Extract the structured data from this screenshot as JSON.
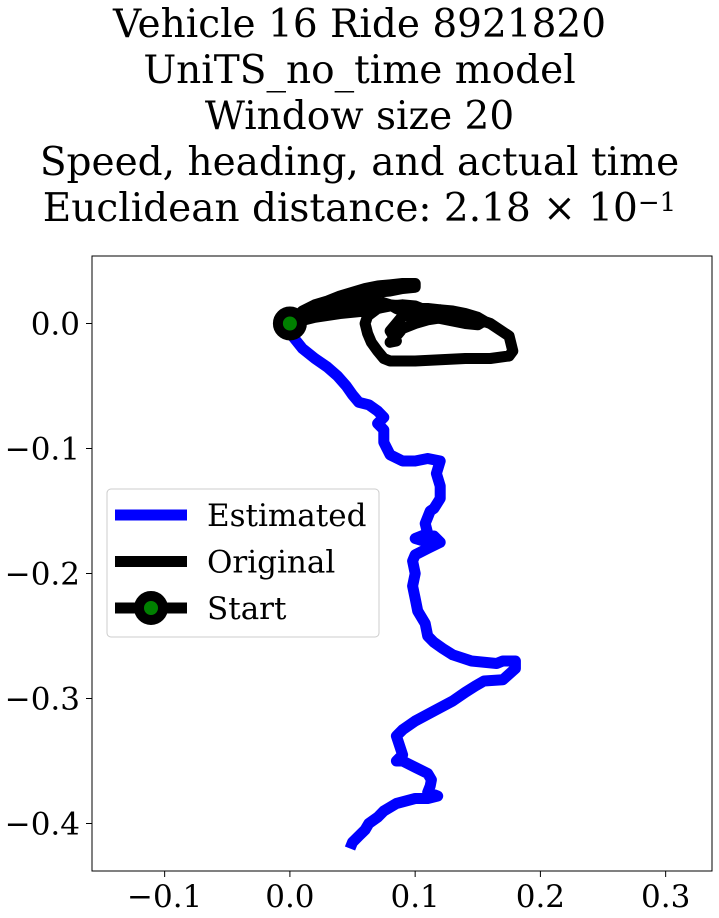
{
  "chart_data": {
    "type": "line",
    "title_lines": [
      "Vehicle 16 Ride 8921820",
      "UniTS_no_time model",
      "Window size 20",
      "Speed, heading, and actual time"
    ],
    "title_distance_prefix": "Euclidean distance: 2.18 × 10",
    "title_distance_exponent": "−1",
    "xlabel": "",
    "ylabel": "",
    "xlim": [
      -0.158,
      0.337
    ],
    "ylim": [
      -0.438,
      0.054
    ],
    "x_ticks": [
      -0.1,
      0.0,
      0.1,
      0.2,
      0.3
    ],
    "x_tick_labels": [
      "−0.1",
      "0.0",
      "0.1",
      "0.2",
      "0.3"
    ],
    "y_ticks": [
      0.0,
      -0.1,
      -0.2,
      -0.3,
      -0.4
    ],
    "y_tick_labels": [
      "0.0",
      "−0.1",
      "−0.2",
      "−0.3",
      "−0.4"
    ],
    "grid": false,
    "legend_placement": "center-left",
    "legend": [
      {
        "label": "Estimated",
        "kind": "line",
        "color": "#0000ff"
      },
      {
        "label": "Original",
        "kind": "line",
        "color": "#000000"
      },
      {
        "label": "Start",
        "kind": "marker",
        "color": "#000000",
        "marker_face": "#008000"
      }
    ],
    "series": [
      {
        "name": "Estimated",
        "color": "#0000ff",
        "x": [
          0.0,
          0.002,
          0.01,
          0.02,
          0.03,
          0.038,
          0.045,
          0.05,
          0.055,
          0.063,
          0.07,
          0.075,
          0.07,
          0.075,
          0.075,
          0.08,
          0.09,
          0.1,
          0.11,
          0.12,
          0.117,
          0.12,
          0.12,
          0.115,
          0.112,
          0.11,
          0.108,
          0.11,
          0.1,
          0.11,
          0.115,
          0.12,
          0.11,
          0.1,
          0.098,
          0.1,
          0.098,
          0.1,
          0.102,
          0.108,
          0.11,
          0.115,
          0.122,
          0.13,
          0.145,
          0.165,
          0.17,
          0.18,
          0.18,
          0.17,
          0.155,
          0.148,
          0.14,
          0.13,
          0.115,
          0.1,
          0.09,
          0.085,
          0.09,
          0.085,
          0.09,
          0.1,
          0.11,
          0.113,
          0.112,
          0.11,
          0.118,
          0.11,
          0.1,
          0.085,
          0.075,
          0.07,
          0.063,
          0.06,
          0.055,
          0.05,
          0.048
        ],
        "y": [
          0.0,
          -0.01,
          -0.02,
          -0.028,
          -0.035,
          -0.042,
          -0.05,
          -0.057,
          -0.063,
          -0.065,
          -0.07,
          -0.075,
          -0.08,
          -0.085,
          -0.095,
          -0.105,
          -0.11,
          -0.11,
          -0.108,
          -0.11,
          -0.12,
          -0.13,
          -0.14,
          -0.148,
          -0.15,
          -0.155,
          -0.16,
          -0.168,
          -0.172,
          -0.175,
          -0.17,
          -0.175,
          -0.18,
          -0.185,
          -0.19,
          -0.2,
          -0.21,
          -0.22,
          -0.23,
          -0.24,
          -0.25,
          -0.255,
          -0.26,
          -0.265,
          -0.27,
          -0.272,
          -0.27,
          -0.27,
          -0.276,
          -0.285,
          -0.286,
          -0.29,
          -0.295,
          -0.302,
          -0.31,
          -0.318,
          -0.325,
          -0.33,
          -0.345,
          -0.35,
          -0.35,
          -0.355,
          -0.36,
          -0.365,
          -0.37,
          -0.375,
          -0.378,
          -0.38,
          -0.38,
          -0.384,
          -0.39,
          -0.395,
          -0.4,
          -0.405,
          -0.41,
          -0.415,
          -0.42
        ]
      },
      {
        "name": "Original",
        "color": "#000000",
        "x": [
          0.0,
          0.01,
          0.02,
          0.03,
          0.04,
          0.06,
          0.07,
          0.08,
          0.09,
          0.1,
          0.1,
          0.09,
          0.08,
          0.07,
          0.06,
          0.05,
          0.04,
          0.03,
          0.02,
          0.01,
          0.0,
          0.02,
          0.04,
          0.06,
          0.065,
          0.07,
          0.08,
          0.085,
          0.09,
          0.1,
          0.12,
          0.13,
          0.11,
          0.1,
          0.09,
          0.085,
          0.08,
          0.085,
          0.08,
          0.085,
          0.09,
          0.1,
          0.11,
          0.12,
          0.14,
          0.16,
          0.175,
          0.178,
          0.175,
          0.16,
          0.14,
          0.12,
          0.1,
          0.08,
          0.075,
          0.07,
          0.065,
          0.062,
          0.06,
          0.062,
          0.07,
          0.08,
          0.09,
          0.1,
          0.11,
          0.12,
          0.13,
          0.14,
          0.15,
          0.155,
          0.15,
          0.14,
          0.12,
          0.11,
          0.1,
          0.09,
          0.08,
          0.06,
          0.04,
          0.02,
          0.0
        ],
        "y": [
          0.0,
          0.01,
          0.015,
          0.018,
          0.022,
          0.028,
          0.03,
          0.031,
          0.032,
          0.032,
          0.029,
          0.028,
          0.026,
          0.025,
          0.023,
          0.02,
          0.017,
          0.014,
          0.01,
          0.006,
          0.0,
          0.008,
          0.014,
          0.018,
          0.02,
          0.018,
          0.015,
          0.012,
          0.01,
          0.009,
          0.01,
          0.006,
          0.003,
          0.0,
          -0.004,
          -0.01,
          -0.015,
          -0.014,
          -0.006,
          0.0,
          0.006,
          0.008,
          0.01,
          0.011,
          0.007,
          0.0,
          -0.01,
          -0.022,
          -0.026,
          -0.028,
          -0.028,
          -0.029,
          -0.03,
          -0.03,
          -0.028,
          -0.022,
          -0.015,
          -0.008,
          0.0,
          0.006,
          0.012,
          0.015,
          0.014,
          0.012,
          0.012,
          0.011,
          0.01,
          0.008,
          0.005,
          0.002,
          -0.001,
          0.0,
          0.004,
          0.01,
          0.014,
          0.015,
          0.014,
          0.01,
          0.008,
          0.005,
          0.0
        ]
      }
    ],
    "start_marker": {
      "label": "Start",
      "x": 0.0,
      "y": 0.0,
      "edge_color": "#000000",
      "face_color": "#008000"
    }
  }
}
